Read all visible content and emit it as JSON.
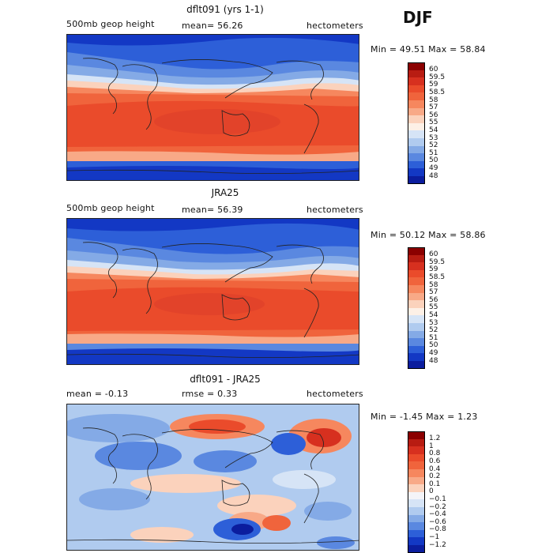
{
  "season": "DJF",
  "panels": [
    {
      "title": "dflt091 (yrs 1-1)",
      "left_label": "500mb geop height",
      "mid_label": "mean=  56.26",
      "right_label": "hectometers",
      "minmax": "Min =   49.51 Max =   58.84",
      "type": "field"
    },
    {
      "title": "JRA25",
      "left_label": "500mb geop height",
      "mid_label": "mean=  56.39",
      "right_label": "hectometers",
      "minmax": "Min =   50.12 Max =   58.86",
      "type": "field"
    },
    {
      "title": "dflt091 - JRA25",
      "left_label": "mean =   -0.13",
      "mid_label": "rmse =    0.33",
      "right_label": "hectometers",
      "minmax": "Min =  -1.45 Max =    1.23",
      "type": "diff"
    }
  ],
  "colorbars": {
    "field": {
      "labels": [
        "60",
        "59.5",
        "59",
        "58.5",
        "58",
        "57",
        "56",
        "55",
        "54",
        "53",
        "52",
        "51",
        "50",
        "49",
        "48"
      ],
      "colors": [
        "#8b0000",
        "#b81c12",
        "#d7301f",
        "#ea4b2b",
        "#f0643c",
        "#f6875e",
        "#f8a987",
        "#fbd2bc",
        "#fdf0e6",
        "#d6e4f6",
        "#b0cbef",
        "#84aae6",
        "#5a88e0",
        "#2d5fd8",
        "#1338c4",
        "#0b1d9e"
      ]
    },
    "diff": {
      "labels": [
        "1.2",
        "1",
        "0.8",
        "0.6",
        "0.4",
        "0.2",
        "0.1",
        "0",
        "−0.1",
        "−0.2",
        "−0.4",
        "−0.6",
        "−0.8",
        "−1",
        "−1.2"
      ],
      "colors": [
        "#8b0000",
        "#b81c12",
        "#d7301f",
        "#ea4b2b",
        "#f0643c",
        "#f6875e",
        "#f8a987",
        "#fbd2bc",
        "#f4f4f8",
        "#d6e4f6",
        "#b0cbef",
        "#84aae6",
        "#5a88e0",
        "#2d5fd8",
        "#1338c4",
        "#0b1d9e"
      ]
    }
  }
}
